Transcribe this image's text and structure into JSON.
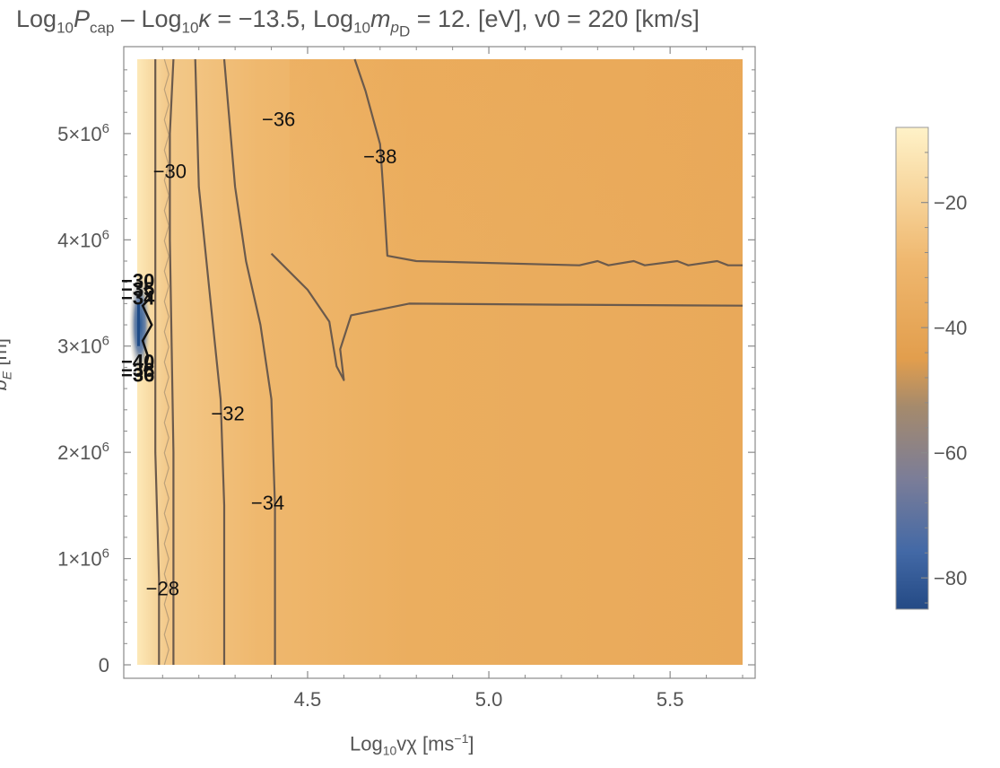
{
  "title": {
    "p1": "Log",
    "s1": "10",
    "p2": "P",
    "s2": "cap",
    "p3": " – Log",
    "s3": "10",
    "p4": "κ",
    "p5": " = −13.5, Log",
    "s5": "10",
    "p6": "m",
    "s6": "p",
    "s6b": "D",
    "p7": " = 12. [eV], v0 = 220 [km/s]"
  },
  "x_label": {
    "p1": "Log",
    "s1": "10",
    "p2": "vχ [ms",
    "sup": "−1",
    "p3": "]"
  },
  "y_label": {
    "p1": "b",
    "s1": "E",
    "p2": " [m]"
  },
  "chart_data": {
    "type": "heatmap",
    "subtype": "contour density plot",
    "title": "Log10 Pcap – Log10 κ = −13.5, Log10 m_pD = 12. [eV], v0 = 220 [km/s]",
    "xlabel": "Log10 vχ [ms−1]",
    "ylabel": "bE [m]",
    "xlim": [
      4.03,
      5.7
    ],
    "ylim": [
      0,
      5700000
    ],
    "x_ticks": [
      4.5,
      5.0,
      5.5
    ],
    "x_tick_labels": [
      "4.5",
      "5.0",
      "5.5"
    ],
    "y_ticks": [
      0,
      1000000,
      2000000,
      3000000,
      4000000,
      5000000
    ],
    "y_tick_labels": [
      {
        "base": "0",
        "exp": ""
      },
      {
        "base": "1×10",
        "exp": "6"
      },
      {
        "base": "2×10",
        "exp": "6"
      },
      {
        "base": "3×10",
        "exp": "6"
      },
      {
        "base": "4×10",
        "exp": "6"
      },
      {
        "base": "5×10",
        "exp": "6"
      }
    ],
    "colorbar": {
      "range": [
        -85,
        -8
      ],
      "ticks": [
        -20,
        -40,
        -60,
        -80
      ],
      "tick_labels": [
        "−20",
        "−40",
        "−60",
        "−80"
      ],
      "colors": [
        "#fdf3c8",
        "#f1c07e",
        "#e6a04e",
        "#9c8574",
        "#4d6fa8",
        "#2a5189"
      ]
    },
    "contour_labels": [
      {
        "text": "−28",
        "x": 4.1,
        "y": 720000
      },
      {
        "text": "−30",
        "x": 4.12,
        "y": 4650000
      },
      {
        "text": "−32",
        "x": 4.28,
        "y": 2370000
      },
      {
        "text": "−34",
        "x": 4.39,
        "y": 1530000
      },
      {
        "text": "−36",
        "x": 4.42,
        "y": 5140000
      },
      {
        "text": "−38",
        "x": 4.7,
        "y": 4790000
      }
    ],
    "edge_labels": [
      {
        "text": "−30",
        "x": 4.05,
        "y": 3620000
      },
      {
        "text": "−35",
        "x": 4.05,
        "y": 3540000
      },
      {
        "text": "−34",
        "x": 4.05,
        "y": 3460000
      },
      {
        "text": "−40",
        "x": 4.05,
        "y": 2860000
      },
      {
        "text": "−38",
        "x": 4.05,
        "y": 2780000
      },
      {
        "text": "−36",
        "x": 4.05,
        "y": 2730000
      }
    ],
    "contours": [
      {
        "level": -28,
        "points": [
          [
            4.09,
            0
          ],
          [
            4.09,
            800000
          ],
          [
            4.08,
            2000000
          ],
          [
            4.08,
            3000000
          ],
          [
            4.08,
            4500000
          ],
          [
            4.08,
            5700000
          ]
        ]
      },
      {
        "level": -30,
        "points": [
          [
            4.13,
            0
          ],
          [
            4.13,
            2000000
          ],
          [
            4.12,
            4000000
          ],
          [
            4.12,
            5000000
          ],
          [
            4.13,
            5700000
          ]
        ]
      },
      {
        "level": -32,
        "points": [
          [
            4.27,
            0
          ],
          [
            4.27,
            1500000
          ],
          [
            4.26,
            2500000
          ],
          [
            4.23,
            3500000
          ],
          [
            4.2,
            4500000
          ],
          [
            4.19,
            5700000
          ]
        ]
      },
      {
        "level": -34,
        "points": [
          [
            4.41,
            0
          ],
          [
            4.41,
            1500000
          ],
          [
            4.4,
            2500000
          ],
          [
            4.37,
            3200000
          ],
          [
            4.33,
            3800000
          ],
          [
            4.3,
            4500000
          ],
          [
            4.27,
            5700000
          ]
        ]
      },
      {
        "level": -36,
        "points": [
          [
            4.4,
            3870000
          ],
          [
            4.5,
            3530000
          ],
          [
            4.56,
            3230000
          ],
          [
            4.58,
            2810000
          ],
          [
            4.6,
            2680000
          ],
          [
            4.59,
            2970000
          ],
          [
            4.62,
            3290000
          ],
          [
            4.78,
            3400000
          ],
          [
            5.2,
            3390000
          ],
          [
            5.7,
            3380000
          ]
        ]
      },
      {
        "level": -38,
        "points": [
          [
            4.63,
            5700000
          ],
          [
            4.66,
            5400000
          ],
          [
            4.7,
            4900000
          ],
          [
            4.71,
            4400000
          ],
          [
            4.72,
            3850000
          ],
          [
            4.8,
            3800000
          ],
          [
            5.25,
            3760000
          ],
          [
            5.3,
            3800000
          ],
          [
            5.33,
            3760000
          ],
          [
            5.4,
            3800000
          ],
          [
            5.43,
            3760000
          ],
          [
            5.52,
            3800000
          ],
          [
            5.55,
            3760000
          ],
          [
            5.63,
            3800000
          ],
          [
            5.66,
            3760000
          ],
          [
            5.7,
            3760000
          ]
        ]
      }
    ]
  }
}
